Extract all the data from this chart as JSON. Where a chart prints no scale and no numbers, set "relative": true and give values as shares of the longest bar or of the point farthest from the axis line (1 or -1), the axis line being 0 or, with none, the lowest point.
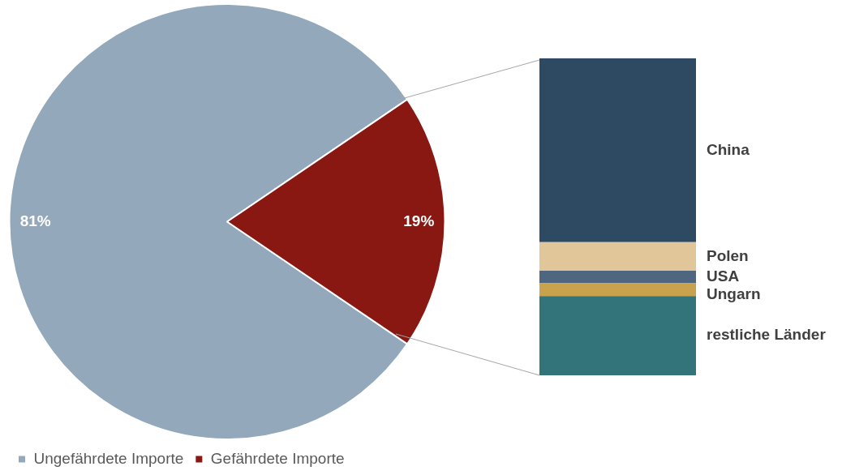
{
  "chart_data": [
    {
      "type": "pie",
      "categories": [
        "Ungefährdete Importe",
        "Gefährdete Importe"
      ],
      "values": [
        81,
        19
      ],
      "colors": [
        "#93a8bb",
        "#881811"
      ],
      "value_labels": [
        "81%",
        "19%"
      ],
      "legend": "bottom left"
    },
    {
      "type": "bar",
      "categories": [
        null
      ],
      "stacked": true,
      "relative": true,
      "series": [
        {
          "name": "restliche Länder",
          "color": "#33747a",
          "values": [
            0.25
          ]
        },
        {
          "name": "Ungarn",
          "color": "#c9a24d",
          "values": [
            0.04
          ]
        },
        {
          "name": "USA",
          "color": "#4f6680",
          "values": [
            0.04
          ]
        },
        {
          "name": "Polen",
          "color": "#e1c699",
          "values": [
            0.09
          ]
        },
        {
          "name": "China",
          "color": "#2e4a63",
          "values": [
            0.58
          ]
        }
      ]
    }
  ]
}
